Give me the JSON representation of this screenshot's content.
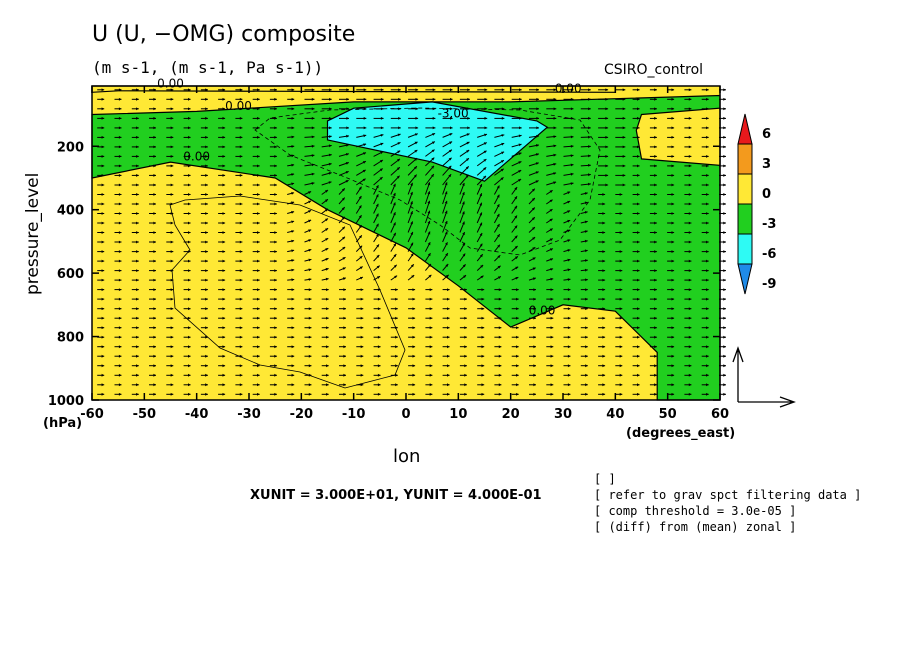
{
  "title": "U (U, −OMG) composite",
  "subtitle": "(m s-1, (m s-1, Pa s-1))",
  "run_label": "CSIRO_control",
  "vector_unit_text": "XUNIT = 3.000E+01, YUNIT = 4.000E-01",
  "notes": [
    "[  ]",
    "[ refer to grav spct filtering data ]",
    "[ comp threshold = 3.0e-05 ]",
    "[ (diff) from (mean) zonal ]"
  ],
  "colors": {
    "pos6": "#e8191c",
    "pos3": "#f39a1d",
    "pos0": "#ffe835",
    "neg0": "#21cf1f",
    "neg3": "#2efaf4",
    "neg6": "#1f8be8"
  },
  "chart_data": {
    "type": "contour+vector",
    "title": "U (U, −OMG) composite",
    "xlabel": "lon",
    "xunit": "(degrees_east)",
    "ylabel": "pressure_level",
    "yunit": "(hPa)",
    "xlim": [
      -60,
      60
    ],
    "ylim": [
      1000,
      10
    ],
    "x_ticks": [
      -60,
      -50,
      -40,
      -30,
      -20,
      -10,
      0,
      10,
      20,
      30,
      40,
      50,
      60
    ],
    "y_ticks": [
      200,
      400,
      600,
      800,
      1000
    ],
    "colorbar_levels": [
      "6",
      "3",
      "0",
      "-3",
      "-6",
      "-9"
    ],
    "contour_labels": [
      {
        "text": "0.00",
        "lon": -45,
        "p": 15
      },
      {
        "text": "0.00",
        "lon": -32,
        "p": 85
      },
      {
        "text": "0.00",
        "lon": -40,
        "p": 245
      },
      {
        "text": "-3.00",
        "lon": 9,
        "p": 110
      },
      {
        "text": "0.00",
        "lon": 31,
        "p": 30
      },
      {
        "text": "0.00",
        "lon": 26,
        "p": 730
      }
    ],
    "regions": [
      {
        "sign": "positive",
        "range": "0 to 3",
        "outline_lonp": [
          [
            -60,
            10
          ],
          [
            40,
            10
          ],
          [
            40,
            30
          ],
          [
            -55,
            25
          ],
          [
            -60,
            30
          ]
        ]
      },
      {
        "sign": "negative",
        "range": "-3 to 0",
        "outline_lonp": [
          [
            -60,
            100
          ],
          [
            -40,
            90
          ],
          [
            -10,
            60
          ],
          [
            20,
            60
          ],
          [
            60,
            40
          ],
          [
            60,
            1000
          ],
          [
            48,
            1000
          ],
          [
            48,
            850
          ],
          [
            40,
            720
          ],
          [
            30,
            700
          ],
          [
            20,
            770
          ],
          [
            10,
            640
          ],
          [
            0,
            520
          ],
          [
            -15,
            400
          ],
          [
            -25,
            300
          ],
          [
            -45,
            250
          ],
          [
            -60,
            300
          ]
        ]
      },
      {
        "sign": "negative",
        "range": "-6 to -3",
        "outline_lonp": [
          [
            -15,
            120
          ],
          [
            -10,
            80
          ],
          [
            5,
            60
          ],
          [
            25,
            120
          ],
          [
            27,
            140
          ],
          [
            15,
            310
          ],
          [
            5,
            250
          ],
          [
            -15,
            180
          ]
        ]
      },
      {
        "sign": "positive",
        "range": "0 to 3",
        "outline_lonp": [
          [
            45,
            100
          ],
          [
            60,
            80
          ],
          [
            60,
            260
          ],
          [
            45,
            240
          ],
          [
            44,
            150
          ]
        ]
      }
    ],
    "vector_reference": {
      "x": 30,
      "y": 0.4
    }
  }
}
